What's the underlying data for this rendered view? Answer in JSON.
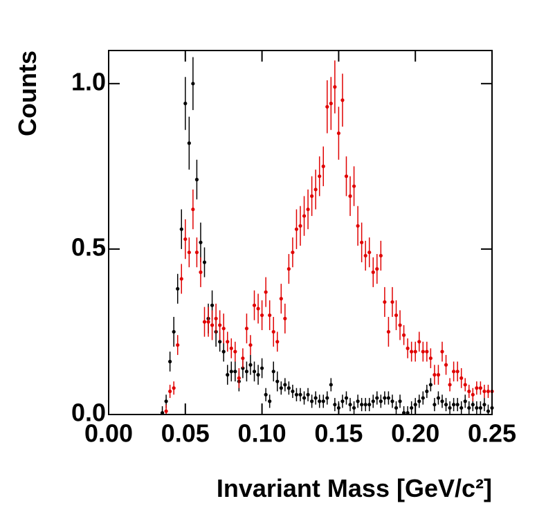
{
  "chart_data": {
    "type": "scatter",
    "xlabel": "Invariant Mass [GeV/c²]",
    "ylabel": "Counts",
    "xlim": [
      0,
      0.25
    ],
    "ylim": [
      0,
      1.1
    ],
    "xticks": [
      {
        "value": 0,
        "label": "0.00"
      },
      0.05,
      {
        "value": 0.1,
        "label": "0.10"
      },
      0.15,
      {
        "value": 0.2,
        "label": "0.20"
      },
      0.25
    ],
    "yticks": [
      {
        "value": 0,
        "label": "0.0"
      },
      0.5,
      {
        "value": 1,
        "label": "1.0"
      }
    ],
    "grid": false,
    "series": [
      {
        "color": "#000000",
        "x": [
          0.035,
          0.0375,
          0.04,
          0.0425,
          0.045,
          0.0475,
          0.05,
          0.0525,
          0.055,
          0.0575,
          0.06,
          0.0625,
          0.065,
          0.0675,
          0.07,
          0.0725,
          0.075,
          0.0775,
          0.08,
          0.0825,
          0.085,
          0.0875,
          0.09,
          0.0925,
          0.095,
          0.0975,
          0.1,
          0.1025,
          0.105,
          0.1075,
          0.11,
          0.1125,
          0.115,
          0.1175,
          0.12,
          0.1225,
          0.125,
          0.1275,
          0.13,
          0.1325,
          0.135,
          0.1375,
          0.14,
          0.1425,
          0.145,
          0.1475,
          0.15,
          0.1525,
          0.155,
          0.1575,
          0.16,
          0.1625,
          0.165,
          0.1675,
          0.17,
          0.1725,
          0.175,
          0.1775,
          0.18,
          0.1825,
          0.185,
          0.1875,
          0.19,
          0.1925,
          0.195,
          0.1975,
          0.2,
          0.2025,
          0.205,
          0.2075,
          0.21,
          0.2125,
          0.215,
          0.2175,
          0.22,
          0.2225,
          0.225,
          0.2275,
          0.23,
          0.2325,
          0.235,
          0.2375,
          0.24,
          0.2425,
          0.245,
          0.2475,
          0.25
        ],
        "values": [
          0.005,
          0.04,
          0.16,
          0.25,
          0.38,
          0.56,
          0.94,
          0.82,
          1.0,
          0.71,
          0.52,
          0.46,
          0.29,
          0.33,
          0.25,
          0.22,
          0.19,
          0.12,
          0.13,
          0.13,
          0.1,
          0.14,
          0.13,
          0.15,
          0.13,
          0.12,
          0.14,
          0.06,
          0.04,
          0.13,
          0.1,
          0.08,
          0.09,
          0.08,
          0.07,
          0.06,
          0.06,
          0.05,
          0.06,
          0.04,
          0.05,
          0.04,
          0.04,
          0.05,
          0.09,
          0.03,
          0.02,
          0.04,
          0.05,
          0.03,
          0.02,
          0.04,
          0.03,
          0.03,
          0.03,
          0.04,
          0.05,
          0.04,
          0.05,
          0.05,
          0.04,
          0.02,
          0.04,
          0.005,
          0.005,
          0.02,
          0.03,
          0.04,
          0.05,
          0.07,
          0.09,
          0.03,
          0.05,
          0.04,
          0.03,
          0.02,
          0.03,
          0.03,
          0.02,
          0.04,
          0.02,
          0.03,
          0.02,
          0.02,
          0.03,
          0.01,
          0.02
        ],
        "errors": [
          0.02,
          0.02,
          0.03,
          0.045,
          0.045,
          0.06,
          0.08,
          0.08,
          0.08,
          0.06,
          0.06,
          0.045,
          0.045,
          0.045,
          0.045,
          0.03,
          0.03,
          0.03,
          0.03,
          0.03,
          0.03,
          0.03,
          0.03,
          0.03,
          0.03,
          0.03,
          0.03,
          0.02,
          0.02,
          0.03,
          0.03,
          0.02,
          0.02,
          0.02,
          0.02,
          0.02,
          0.02,
          0.02,
          0.02,
          0.02,
          0.02,
          0.02,
          0.02,
          0.02,
          0.02,
          0.02,
          0.02,
          0.02,
          0.02,
          0.02,
          0.02,
          0.02,
          0.02,
          0.02,
          0.02,
          0.02,
          0.02,
          0.02,
          0.02,
          0.02,
          0.02,
          0.02,
          0.02,
          0.02,
          0.02,
          0.02,
          0.02,
          0.02,
          0.02,
          0.02,
          0.02,
          0.02,
          0.02,
          0.02,
          0.02,
          0.02,
          0.02,
          0.02,
          0.02,
          0.02,
          0.02,
          0.02,
          0.02,
          0.02,
          0.02,
          0.02,
          0.02
        ]
      },
      {
        "color": "#e00000",
        "x": [
          0.0375,
          0.04,
          0.0425,
          0.045,
          0.0475,
          0.05,
          0.0525,
          0.055,
          0.0575,
          0.06,
          0.0625,
          0.065,
          0.0675,
          0.07,
          0.0725,
          0.075,
          0.0775,
          0.08,
          0.0825,
          0.085,
          0.0875,
          0.09,
          0.0925,
          0.095,
          0.0975,
          0.1,
          0.1025,
          0.105,
          0.1075,
          0.11,
          0.1125,
          0.115,
          0.1175,
          0.12,
          0.1225,
          0.125,
          0.1275,
          0.13,
          0.1325,
          0.135,
          0.1375,
          0.14,
          0.1425,
          0.145,
          0.1475,
          0.15,
          0.1525,
          0.155,
          0.1575,
          0.16,
          0.1625,
          0.165,
          0.1675,
          0.17,
          0.1725,
          0.175,
          0.1775,
          0.18,
          0.1825,
          0.185,
          0.1875,
          0.19,
          0.1925,
          0.195,
          0.1975,
          0.2,
          0.2025,
          0.205,
          0.2075,
          0.21,
          0.2125,
          0.215,
          0.2175,
          0.22,
          0.2225,
          0.225,
          0.2275,
          0.23,
          0.2325,
          0.235,
          0.2375,
          0.24,
          0.2425,
          0.245,
          0.2475,
          0.25
        ],
        "values": [
          0.01,
          0.07,
          0.08,
          0.21,
          0.41,
          0.53,
          0.49,
          0.62,
          0.49,
          0.43,
          0.28,
          0.28,
          0.27,
          0.29,
          0.27,
          0.26,
          0.22,
          0.2,
          0.19,
          0.11,
          0.17,
          0.26,
          0.21,
          0.33,
          0.32,
          0.3,
          0.37,
          0.3,
          0.25,
          0.22,
          0.35,
          0.29,
          0.44,
          0.49,
          0.56,
          0.57,
          0.6,
          0.62,
          0.66,
          0.68,
          0.72,
          0.75,
          0.93,
          0.94,
          0.99,
          0.85,
          0.95,
          0.72,
          0.66,
          0.69,
          0.57,
          0.52,
          0.48,
          0.49,
          0.43,
          0.44,
          0.48,
          0.34,
          0.25,
          0.34,
          0.3,
          0.27,
          0.24,
          0.2,
          0.19,
          0.19,
          0.22,
          0.19,
          0.19,
          0.17,
          0.12,
          0.12,
          0.19,
          0.15,
          0.09,
          0.13,
          0.13,
          0.11,
          0.09,
          0.07,
          0.06,
          0.08,
          0.08,
          0.07,
          0.07,
          0.07
        ],
        "errors": [
          0.02,
          0.02,
          0.02,
          0.03,
          0.045,
          0.06,
          0.045,
          0.06,
          0.045,
          0.045,
          0.045,
          0.045,
          0.045,
          0.045,
          0.045,
          0.045,
          0.03,
          0.03,
          0.03,
          0.03,
          0.03,
          0.045,
          0.03,
          0.045,
          0.045,
          0.045,
          0.045,
          0.045,
          0.045,
          0.03,
          0.045,
          0.045,
          0.045,
          0.045,
          0.06,
          0.06,
          0.06,
          0.06,
          0.06,
          0.06,
          0.06,
          0.06,
          0.08,
          0.08,
          0.08,
          0.08,
          0.08,
          0.06,
          0.06,
          0.06,
          0.06,
          0.06,
          0.045,
          0.045,
          0.045,
          0.045,
          0.045,
          0.045,
          0.045,
          0.045,
          0.045,
          0.045,
          0.03,
          0.03,
          0.03,
          0.03,
          0.03,
          0.03,
          0.03,
          0.03,
          0.03,
          0.03,
          0.03,
          0.03,
          0.02,
          0.03,
          0.03,
          0.03,
          0.02,
          0.02,
          0.02,
          0.02,
          0.02,
          0.02,
          0.02,
          0.02
        ]
      }
    ]
  }
}
